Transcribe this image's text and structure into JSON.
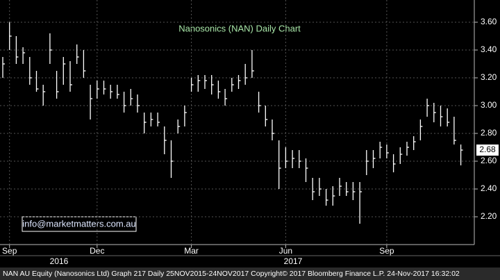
{
  "chart_data": {
    "type": "hlc",
    "title": "Nanosonics (NAN) Daily Chart",
    "annotation": "info@marketmatters.com.au",
    "footer": "NAN AU Equity (Nanosonics Ltd) Graph 217  Daily 25NOV2015-24NOV2017  Copyright© 2017 Bloomberg Finance L.P.  24-Nov-2017 16:32:02",
    "categories": [
      null,
      "Sep",
      null,
      null,
      null,
      null,
      null,
      null,
      null,
      null,
      null,
      null,
      null,
      null,
      "Dec",
      null,
      null,
      null,
      null,
      null,
      null,
      null,
      null,
      null,
      null,
      null,
      null,
      null,
      "Mar",
      null,
      null,
      null,
      null,
      null,
      null,
      null,
      null,
      null,
      null,
      null,
      null,
      null,
      "Jun",
      null,
      null,
      null,
      null,
      null,
      null,
      null,
      null,
      null,
      null,
      null,
      null,
      null,
      null,
      "Sep",
      null,
      null,
      null,
      null,
      null,
      null,
      null,
      null,
      null,
      null,
      null
    ],
    "years": [
      "2016",
      "2017"
    ],
    "high": [
      3.35,
      3.6,
      3.5,
      3.42,
      3.35,
      3.25,
      3.15,
      3.52,
      3.25,
      3.35,
      3.32,
      3.44,
      3.4,
      3.15,
      3.18,
      3.18,
      3.15,
      3.15,
      3.1,
      3.12,
      3.08,
      2.95,
      2.95,
      2.95,
      2.85,
      2.75,
      2.9,
      3.0,
      3.2,
      3.22,
      3.22,
      3.22,
      3.18,
      3.12,
      3.2,
      3.22,
      3.3,
      3.4,
      3.1,
      3.0,
      2.9,
      2.75,
      2.7,
      2.68,
      2.68,
      2.62,
      2.48,
      2.48,
      2.4,
      2.42,
      2.48,
      2.45,
      2.45,
      2.45,
      2.68,
      2.68,
      2.74,
      2.72,
      2.65,
      2.7,
      2.74,
      2.78,
      2.9,
      3.05,
      3.02,
      3.0,
      2.98,
      2.92,
      2.72
    ],
    "low": [
      3.2,
      3.4,
      3.3,
      3.3,
      3.15,
      3.1,
      3.0,
      3.3,
      3.05,
      3.15,
      3.1,
      3.3,
      3.2,
      2.9,
      3.05,
      3.08,
      3.05,
      3.05,
      2.95,
      3.0,
      2.95,
      2.8,
      2.85,
      2.85,
      2.65,
      2.48,
      2.8,
      2.85,
      3.1,
      3.1,
      3.12,
      3.08,
      3.05,
      3.0,
      3.1,
      3.12,
      3.15,
      3.2,
      2.95,
      2.85,
      2.75,
      2.4,
      2.55,
      2.55,
      2.55,
      2.45,
      2.32,
      2.35,
      2.28,
      2.28,
      2.35,
      2.35,
      2.32,
      2.15,
      2.5,
      2.55,
      2.62,
      2.62,
      2.52,
      2.58,
      2.64,
      2.68,
      2.75,
      2.92,
      2.88,
      2.85,
      2.85,
      2.72,
      2.57
    ],
    "close": [
      3.3,
      3.5,
      3.35,
      3.38,
      3.2,
      3.12,
      3.1,
      3.4,
      3.1,
      3.3,
      3.15,
      3.35,
      3.25,
      3.05,
      3.12,
      3.12,
      3.1,
      3.08,
      3.0,
      3.05,
      3.0,
      2.88,
      2.9,
      2.88,
      2.75,
      2.6,
      2.85,
      2.95,
      3.15,
      3.18,
      3.18,
      3.15,
      3.1,
      3.05,
      3.15,
      3.18,
      3.2,
      3.25,
      3.0,
      2.9,
      2.8,
      2.55,
      2.6,
      2.62,
      2.6,
      2.55,
      2.38,
      2.4,
      2.32,
      2.35,
      2.42,
      2.38,
      2.38,
      2.38,
      2.6,
      2.62,
      2.7,
      2.66,
      2.58,
      2.65,
      2.7,
      2.74,
      2.85,
      3.0,
      2.95,
      2.92,
      2.88,
      2.75,
      2.68
    ],
    "last_price": 2.68,
    "color": "#ffffff",
    "ylim": [
      2.0,
      3.76
    ],
    "yticks": [
      {
        "value": 2.2,
        "label": "2.20"
      },
      {
        "value": 2.4,
        "label": "2.40"
      },
      {
        "value": 2.6,
        "label": "2.60"
      },
      {
        "value": 2.8,
        "label": "2.80"
      },
      {
        "value": 3.0,
        "label": "3.00"
      },
      {
        "value": 3.2,
        "label": "3.20"
      },
      {
        "value": 3.4,
        "label": "3.40"
      },
      {
        "value": 3.6,
        "label": "3.60"
      }
    ],
    "grid": true
  }
}
